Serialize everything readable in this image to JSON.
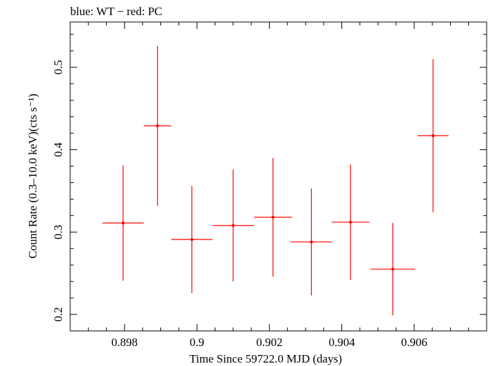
{
  "chart_data": {
    "type": "scatter",
    "title": "blue: WT − red: PC",
    "xlabel": "Time Since 59722.0 MJD (days)",
    "ylabel": "Count Rate (0.3–10.0 keV)(cts s⁻¹)",
    "xlim": [
      0.8965,
      0.908
    ],
    "ylim": [
      0.18,
      0.555
    ],
    "xticks": [
      0.898,
      0.9,
      0.902,
      0.904,
      0.906
    ],
    "xtick_labels": [
      "0.898",
      "0.9",
      "0.902",
      "0.904",
      "0.906"
    ],
    "yticks": [
      0.2,
      0.3,
      0.4,
      0.5
    ],
    "ytick_labels": [
      "0.2",
      "0.3",
      "0.4",
      "0.5"
    ],
    "grid": false,
    "series": [
      {
        "name": "PC",
        "color": "#ff0000",
        "points": [
          {
            "x": 0.89796,
            "y": 0.311,
            "xerr_lo": 0.00057,
            "xerr_hi": 0.00057,
            "yerr_lo": 0.07,
            "yerr_hi": 0.07
          },
          {
            "x": 0.89891,
            "y": 0.429,
            "xerr_lo": 0.00038,
            "xerr_hi": 0.00038,
            "yerr_lo": 0.097,
            "yerr_hi": 0.097
          },
          {
            "x": 0.89986,
            "y": 0.291,
            "xerr_lo": 0.00057,
            "xerr_hi": 0.00057,
            "yerr_lo": 0.065,
            "yerr_hi": 0.065
          },
          {
            "x": 0.901,
            "y": 0.308,
            "xerr_lo": 0.00057,
            "xerr_hi": 0.00057,
            "yerr_lo": 0.068,
            "yerr_hi": 0.068
          },
          {
            "x": 0.9021,
            "y": 0.318,
            "xerr_lo": 0.00052,
            "xerr_hi": 0.00052,
            "yerr_lo": 0.072,
            "yerr_hi": 0.072
          },
          {
            "x": 0.90316,
            "y": 0.288,
            "xerr_lo": 0.00057,
            "xerr_hi": 0.00057,
            "yerr_lo": 0.065,
            "yerr_hi": 0.065
          },
          {
            "x": 0.90424,
            "y": 0.312,
            "xerr_lo": 0.00052,
            "xerr_hi": 0.00052,
            "yerr_lo": 0.07,
            "yerr_hi": 0.07
          },
          {
            "x": 0.90541,
            "y": 0.255,
            "xerr_lo": 0.00062,
            "xerr_hi": 0.00062,
            "yerr_lo": 0.056,
            "yerr_hi": 0.056
          },
          {
            "x": 0.90652,
            "y": 0.417,
            "xerr_lo": 0.00043,
            "xerr_hi": 0.00043,
            "yerr_lo": 0.093,
            "yerr_hi": 0.093
          }
        ]
      }
    ]
  }
}
